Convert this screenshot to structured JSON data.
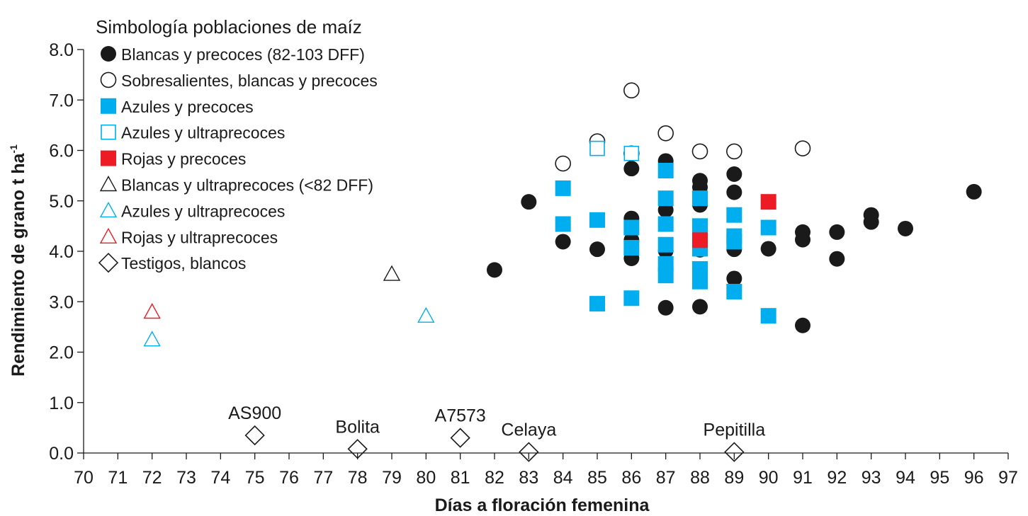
{
  "chart_data": {
    "type": "scatter",
    "title": "",
    "xlabel": "Días a floración femenina",
    "ylabel": "Rendimiento de grano t ha",
    "ylabel_sup": "-1",
    "xlim": [
      70,
      97
    ],
    "ylim": [
      0,
      8
    ],
    "x_ticks": [
      "70",
      "71",
      "72",
      "73",
      "74",
      "75",
      "76",
      "77",
      "78",
      "79",
      "80",
      "81",
      "82",
      "83",
      "84",
      "85",
      "86",
      "87",
      "88",
      "89",
      "90",
      "91",
      "92",
      "93",
      "94",
      "95",
      "96",
      "97"
    ],
    "y_ticks": [
      "0.0",
      "1.0",
      "2.0",
      "3.0",
      "4.0",
      "5.0",
      "6.0",
      "7.0",
      "8.0"
    ],
    "legend": {
      "title": "Simbología poblaciones de maíz",
      "position": "top-left",
      "entries": [
        {
          "label": "Blancas y precoces (82-103 DFF)",
          "marker": "circle-filled",
          "color": "#1a1a1a"
        },
        {
          "label": "Sobresalientes, blancas y precoces",
          "marker": "circle-open",
          "color": "#1a1a1a"
        },
        {
          "label": "Azules y precoces",
          "marker": "square-filled",
          "color": "#00aeef"
        },
        {
          "label": "Azules y ultraprecoces",
          "marker": "square-open",
          "color": "#00aeef"
        },
        {
          "label": "Rojas y precoces",
          "marker": "square-filled",
          "color": "#ed1c24"
        },
        {
          "label": "Blancas y ultraprecoces (<82 DFF)",
          "marker": "triangle-open",
          "color": "#1a1a1a"
        },
        {
          "label": "Azules y ultraprecoces",
          "marker": "triangle-open",
          "color": "#00aeef"
        },
        {
          "label": "Rojas y ultraprecoces",
          "marker": "triangle-open",
          "color": "#ed1c24"
        },
        {
          "label": "Testigos, blancos",
          "marker": "diamond-open",
          "color": "#1a1a1a"
        }
      ]
    },
    "series": [
      {
        "name": "Blancas y precoces (82-103 DFF)",
        "marker": "circle-filled",
        "color": "#1a1a1a",
        "points": [
          [
            82,
            3.63
          ],
          [
            83,
            4.98
          ],
          [
            84,
            4.19
          ],
          [
            85,
            4.04
          ],
          [
            86,
            5.64
          ],
          [
            86,
            4.65
          ],
          [
            86,
            4.22
          ],
          [
            86,
            3.86
          ],
          [
            87,
            5.79
          ],
          [
            87,
            4.82
          ],
          [
            87,
            4.01
          ],
          [
            87,
            2.88
          ],
          [
            88,
            5.4
          ],
          [
            88,
            5.27
          ],
          [
            88,
            4.92
          ],
          [
            88,
            4.03
          ],
          [
            88,
            2.9
          ],
          [
            89,
            5.53
          ],
          [
            89,
            5.17
          ],
          [
            89,
            4.04
          ],
          [
            89,
            3.46
          ],
          [
            90,
            4.05
          ],
          [
            91,
            4.38
          ],
          [
            91,
            4.23
          ],
          [
            91,
            2.53
          ],
          [
            92,
            4.38
          ],
          [
            92,
            3.85
          ],
          [
            93,
            4.72
          ],
          [
            93,
            4.58
          ],
          [
            94,
            4.45
          ],
          [
            96,
            5.18
          ]
        ]
      },
      {
        "name": "Sobresalientes, blancas y precoces",
        "marker": "circle-open",
        "color": "#1a1a1a",
        "points": [
          [
            84,
            5.74
          ],
          [
            85,
            6.18
          ],
          [
            86,
            7.19
          ],
          [
            86,
            5.94
          ],
          [
            87,
            6.34
          ],
          [
            88,
            5.98
          ],
          [
            89,
            5.98
          ],
          [
            91,
            6.04
          ]
        ]
      },
      {
        "name": "Azules y precoces",
        "marker": "square-filled",
        "color": "#00aeef",
        "points": [
          [
            84,
            5.25
          ],
          [
            84,
            4.54
          ],
          [
            85,
            4.62
          ],
          [
            85,
            2.96
          ],
          [
            86,
            4.47
          ],
          [
            86,
            4.07
          ],
          [
            86,
            3.07
          ],
          [
            87,
            5.6
          ],
          [
            87,
            5.05
          ],
          [
            87,
            4.54
          ],
          [
            87,
            4.13
          ],
          [
            87,
            3.75
          ],
          [
            87,
            3.52
          ],
          [
            88,
            5.05
          ],
          [
            88,
            4.5
          ],
          [
            88,
            4.05
          ],
          [
            88,
            3.65
          ],
          [
            88,
            3.4
          ],
          [
            89,
            4.72
          ],
          [
            89,
            4.3
          ],
          [
            89,
            4.19
          ],
          [
            89,
            3.2
          ],
          [
            90,
            4.47
          ],
          [
            90,
            2.72
          ]
        ]
      },
      {
        "name": "Azules y ultraprecoces",
        "marker": "square-open",
        "color": "#00aeef",
        "points": [
          [
            85,
            6.04
          ],
          [
            86,
            5.94
          ]
        ]
      },
      {
        "name": "Rojas y precoces",
        "marker": "square-filled",
        "color": "#ed1c24",
        "points": [
          [
            88,
            4.22
          ],
          [
            90,
            4.98
          ]
        ]
      },
      {
        "name": "Blancas y ultraprecoces (<82 DFF)",
        "marker": "triangle-open",
        "color": "#1a1a1a",
        "points": [
          [
            79,
            3.55
          ]
        ]
      },
      {
        "name": "Azules y ultraprecoces",
        "marker": "triangle-open",
        "color": "#00aeef",
        "points": [
          [
            72,
            2.25
          ],
          [
            80,
            2.72
          ]
        ]
      },
      {
        "name": "Rojas y ultraprecoces",
        "marker": "triangle-open",
        "color": "#ed1c24",
        "points": [
          [
            72,
            2.8
          ]
        ]
      },
      {
        "name": "Testigos, blancos",
        "marker": "diamond-open",
        "color": "#1a1a1a",
        "points": [
          [
            75,
            0.35
          ],
          [
            78,
            0.08
          ],
          [
            81,
            0.3
          ],
          [
            83,
            0.02
          ],
          [
            89,
            0.02
          ]
        ],
        "labels": [
          "AS900",
          "Bolita",
          "A7573",
          "Celaya",
          "Pepitilla"
        ]
      }
    ]
  }
}
